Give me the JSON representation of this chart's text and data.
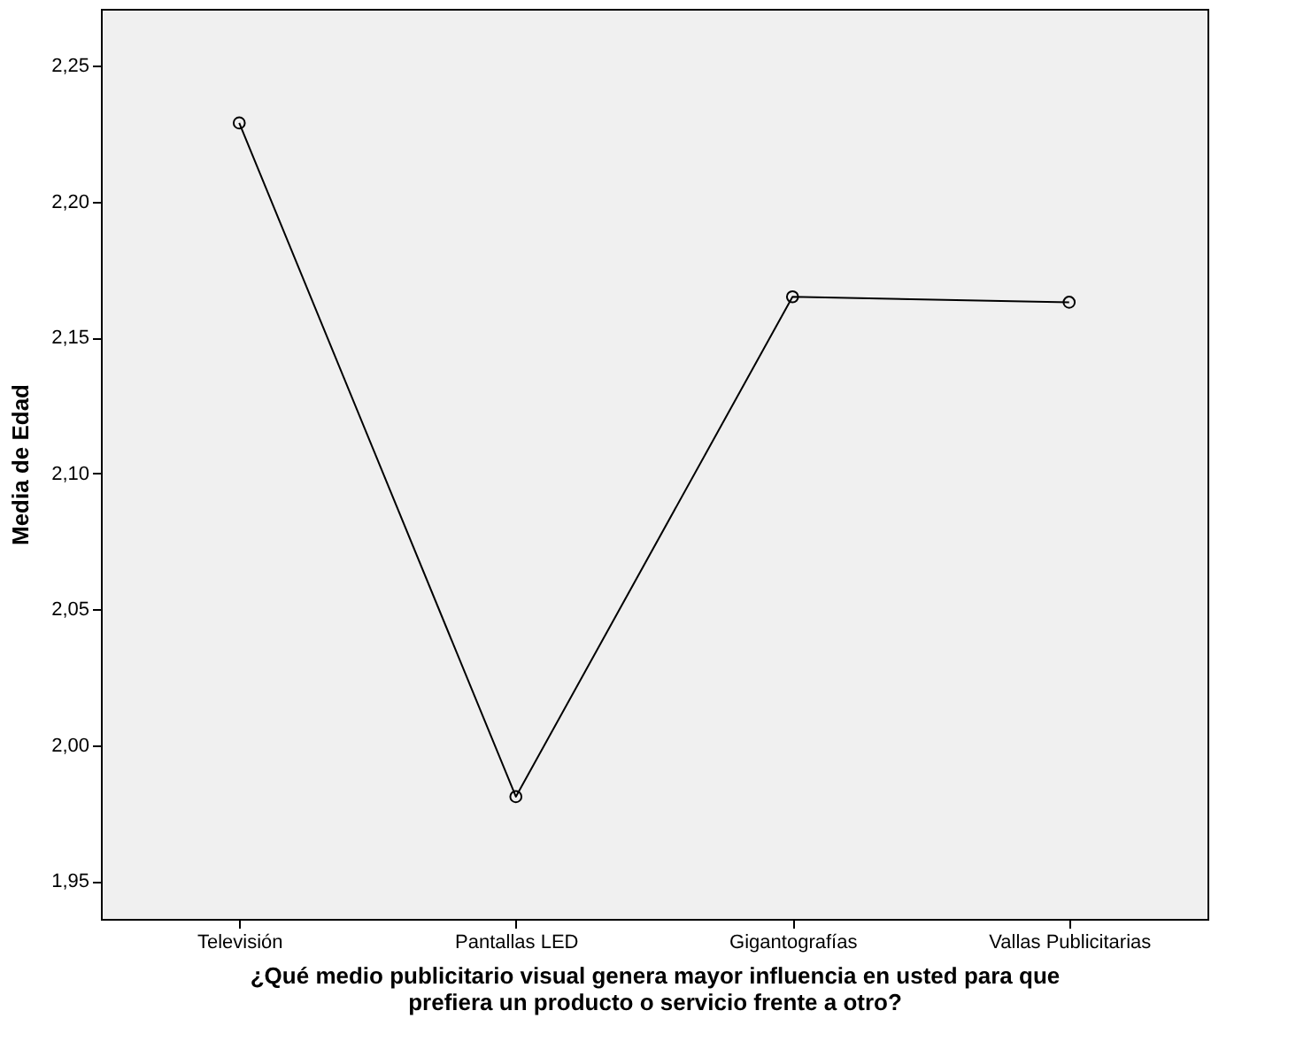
{
  "chart_data": {
    "type": "line",
    "xlabel": "¿Qué medio publicitario visual genera mayor influencia en usted para que prefiera un producto o servicio frente a otro?",
    "ylabel": "Media de Edad",
    "categories": [
      "Televisión",
      "Pantallas LED",
      "Gigantografías",
      "Vallas Publicitarias"
    ],
    "values": [
      2.229,
      1.981,
      2.165,
      2.163
    ],
    "color": "#000000",
    "ylim": [
      1.936,
      2.271
    ],
    "yticks": [
      {
        "value": 1.95,
        "label": "1,95"
      },
      {
        "value": 2.0,
        "label": "2,00"
      },
      {
        "value": 2.05,
        "label": "2,05"
      },
      {
        "value": 2.1,
        "label": "2,10"
      },
      {
        "value": 2.15,
        "label": "2,15"
      },
      {
        "value": 2.2,
        "label": "2,20"
      },
      {
        "value": 2.25,
        "label": "2,25"
      }
    ],
    "grid": false,
    "marker": "circle",
    "line_style": "solid"
  }
}
